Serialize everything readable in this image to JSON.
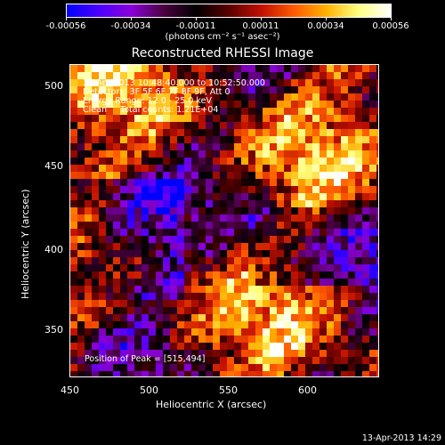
{
  "colorbar": {
    "ticks": [
      "-0.00056",
      "-0.00034",
      "-0.00011",
      "0.00011",
      "0.00034",
      "0.00056"
    ],
    "units": "(photons cm⁻² s⁻¹ asec⁻²)",
    "stops": [
      "#0000ff",
      "#4b00ff",
      "#8a00d8",
      "#4a0040",
      "#000000",
      "#5a0000",
      "#c01000",
      "#ff5a00",
      "#ffb000",
      "#ffff80",
      "#ffffff"
    ]
  },
  "title": "Reconstructed RHESSI Image",
  "overlay": {
    "line1": "12-Apr-2013 10:48:40.000 to 10:52:50.000",
    "line2": "Detectors: 3F 5F 6F 7F 8F 9F, Att 0",
    "line3": "Energy Range: 12.0 - 25.0 keV",
    "line4": "Clean     Total counts: 1.21E+04",
    "peak": "Position of Peak = [515,494]"
  },
  "axes": {
    "xlabel": "Heliocentric X (arcsec)",
    "ylabel": "Heliocentric Y (arcsec)",
    "xticks": [
      "450",
      "500",
      "550",
      "600"
    ],
    "yticks": [
      "500",
      "450",
      "400",
      "350"
    ]
  },
  "footer": "13-Apr-2013 14:29"
}
